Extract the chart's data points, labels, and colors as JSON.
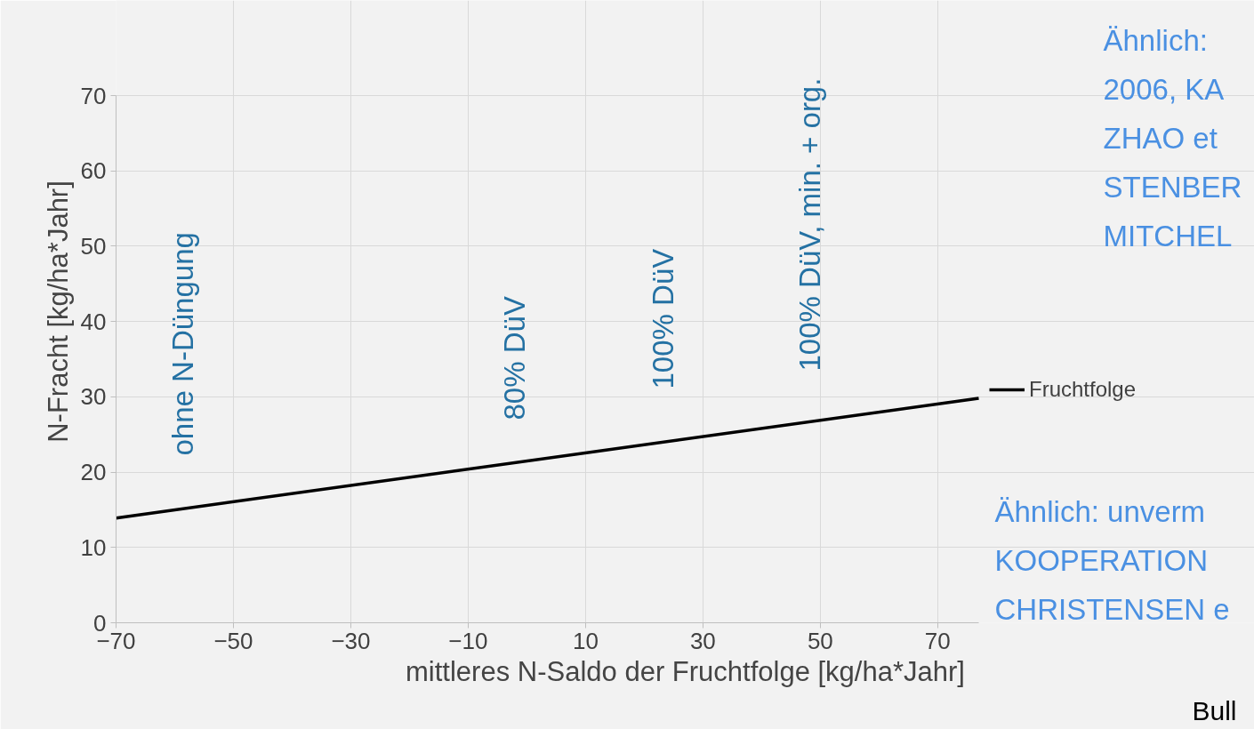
{
  "chart_data": {
    "type": "line",
    "xlabel": "mittleres N-Saldo der Fruchtfolge [kg/ha*Jahr]",
    "ylabel": "N-Fracht [kg/ha*Jahr]",
    "x": [
      -70,
      77
    ],
    "series": [
      {
        "name": "Fruchtfolge",
        "color": "#000000",
        "values": [
          13.9,
          29.8
        ]
      }
    ],
    "xlim": [
      -70,
      77
    ],
    "xticks": [
      -70,
      -50,
      -30,
      -10,
      10,
      30,
      50,
      70
    ],
    "ylim": [
      0,
      70
    ],
    "yticks": [
      0,
      10,
      20,
      30,
      40,
      50,
      60,
      70
    ],
    "grid": true,
    "legend": "right",
    "marker": "none",
    "line_style": "solid",
    "annotations": [
      "ohne N-Düngung",
      "80% DüV",
      "100% DüV",
      "100% DüV, min. + org.",
      "Ähnlich:",
      "2006, KA",
      "ZHAO et",
      "STENBER",
      "MITCHEL",
      "Ähnlich: unverm",
      "KOOPERATION",
      "CHRISTENSEN e",
      "Bull"
    ]
  }
}
